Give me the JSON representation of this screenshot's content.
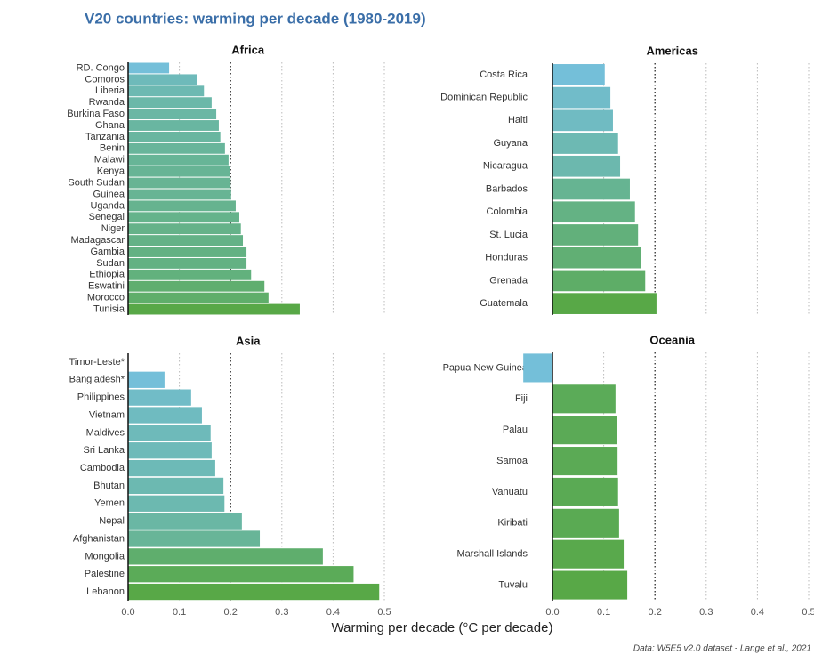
{
  "title": "V20 countries: warming per decade (1980-2019)",
  "x_axis_label": "Warming per decade (°C per decade)",
  "caption": "Data: W5E5 v2.0 dataset - Lange et al., 2021",
  "color_low": "#74bfd9",
  "color_high": "#58a847",
  "chart_data": [
    {
      "type": "bar",
      "orientation": "horizontal",
      "title": "Africa",
      "categories": [
        "RD. Congo",
        "Comoros",
        "Liberia",
        "Rwanda",
        "Burkina Faso",
        "Ghana",
        "Tanzania",
        "Benin",
        "Malawi",
        "Kenya",
        "South Sudan",
        "Guinea",
        "Uganda",
        "Senegal",
        "Niger",
        "Madagascar",
        "Gambia",
        "Sudan",
        "Ethiopia",
        "Eswatini",
        "Morocco",
        "Tunisia"
      ],
      "values": [
        0.08,
        0.135,
        0.148,
        0.163,
        0.172,
        0.177,
        0.18,
        0.189,
        0.196,
        0.198,
        0.2,
        0.201,
        0.21,
        0.217,
        0.22,
        0.224,
        0.231,
        0.231,
        0.24,
        0.266,
        0.274,
        0.335
      ],
      "xlim": [
        -0.06,
        0.5
      ],
      "xticks": [
        0,
        0.1,
        0.2,
        0.3,
        0.4,
        0.5
      ],
      "reference_line": 0.2,
      "xtick_labels": false
    },
    {
      "type": "bar",
      "orientation": "horizontal",
      "title": "Americas",
      "categories": [
        "Costa Rica",
        "Dominican Republic",
        "Haiti",
        "Guyana",
        "Nicaragua",
        "Barbados",
        "Colombia",
        "St. Lucia",
        "Honduras",
        "Grenada",
        "Guatemala"
      ],
      "values": [
        0.102,
        0.113,
        0.118,
        0.128,
        0.132,
        0.151,
        0.161,
        0.167,
        0.172,
        0.181,
        0.203
      ],
      "xlim": [
        -0.06,
        0.5
      ],
      "xticks": [
        0,
        0.1,
        0.2,
        0.3,
        0.4,
        0.5
      ],
      "reference_line": 0.2,
      "xtick_labels": false
    },
    {
      "type": "bar",
      "orientation": "horizontal",
      "title": "Asia",
      "categories": [
        "Timor-Leste*",
        "Bangladesh*",
        "Philippines",
        "Vietnam",
        "Maldives",
        "Sri Lanka",
        "Cambodia",
        "Bhutan",
        "Yemen",
        "Nepal",
        "Afghanistan",
        "Mongolia",
        "Palestine",
        "Lebanon"
      ],
      "values": [
        null,
        0.071,
        0.123,
        0.144,
        0.161,
        0.163,
        0.17,
        0.186,
        0.188,
        0.222,
        0.257,
        0.38,
        0.44,
        0.49
      ],
      "xlim": [
        -0.06,
        0.5
      ],
      "xticks": [
        {
          "value": 0,
          "label": "0.0"
        },
        0.1,
        0.2,
        0.3,
        0.4,
        0.5
      ],
      "reference_line": 0.2,
      "xtick_labels": true
    },
    {
      "type": "bar",
      "orientation": "horizontal",
      "title": "Oceania",
      "categories": [
        "Papua New Guinea",
        "Fiji",
        "Palau",
        "Samoa",
        "Vanuatu",
        "Kiribati",
        "Marshall Islands",
        "Tuvalu"
      ],
      "values": [
        -0.057,
        0.123,
        0.125,
        0.127,
        0.128,
        0.13,
        0.139,
        0.146
      ],
      "xlim": [
        -0.06,
        0.5
      ],
      "xticks": [
        {
          "value": 0,
          "label": "0.0"
        },
        0.1,
        0.2,
        0.3,
        0.4,
        0.5
      ],
      "reference_line": 0.2,
      "xtick_labels": true
    }
  ]
}
